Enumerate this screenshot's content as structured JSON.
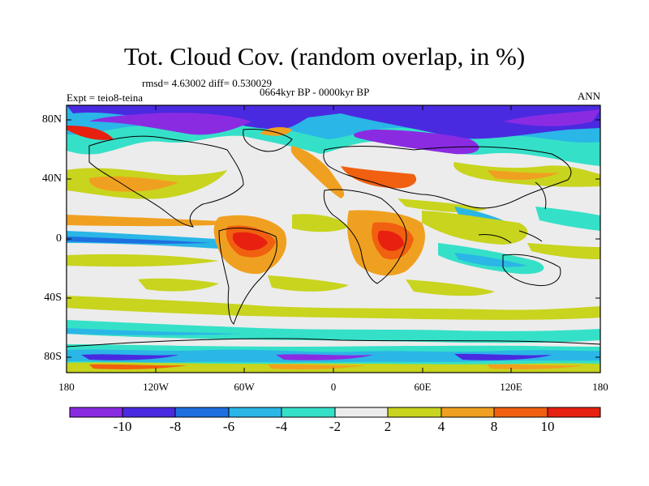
{
  "title": "Tot. Cloud Cov. (random overlap, in %)",
  "stats_line": "rmsd= 4.63002 diff= 0.530029",
  "period_line": "0664kyr BP - 0000kyr BP",
  "experiment_label": "Expt = teio8-teina",
  "season_label": "ANN",
  "map": {
    "projection": "cylindrical equidistant",
    "lon_range": [
      -180,
      180
    ],
    "lat_range": [
      -90,
      90
    ],
    "y_ticks": [
      "80N",
      "40N",
      "0",
      "40S",
      "80S"
    ],
    "x_ticks": [
      "180",
      "120W",
      "60W",
      "0",
      "60E",
      "120E",
      "180"
    ]
  },
  "colorbar": {
    "levels": [
      "-10",
      "-8",
      "-6",
      "-4",
      "-2",
      "2",
      "4",
      "8",
      "10"
    ],
    "colors": [
      "#8a2be2",
      "#4a2ae0",
      "#1e6fe0",
      "#2ab6e6",
      "#35e0c8",
      "#ececec",
      "#c8d41e",
      "#f0a020",
      "#f06010",
      "#e82010"
    ]
  }
}
